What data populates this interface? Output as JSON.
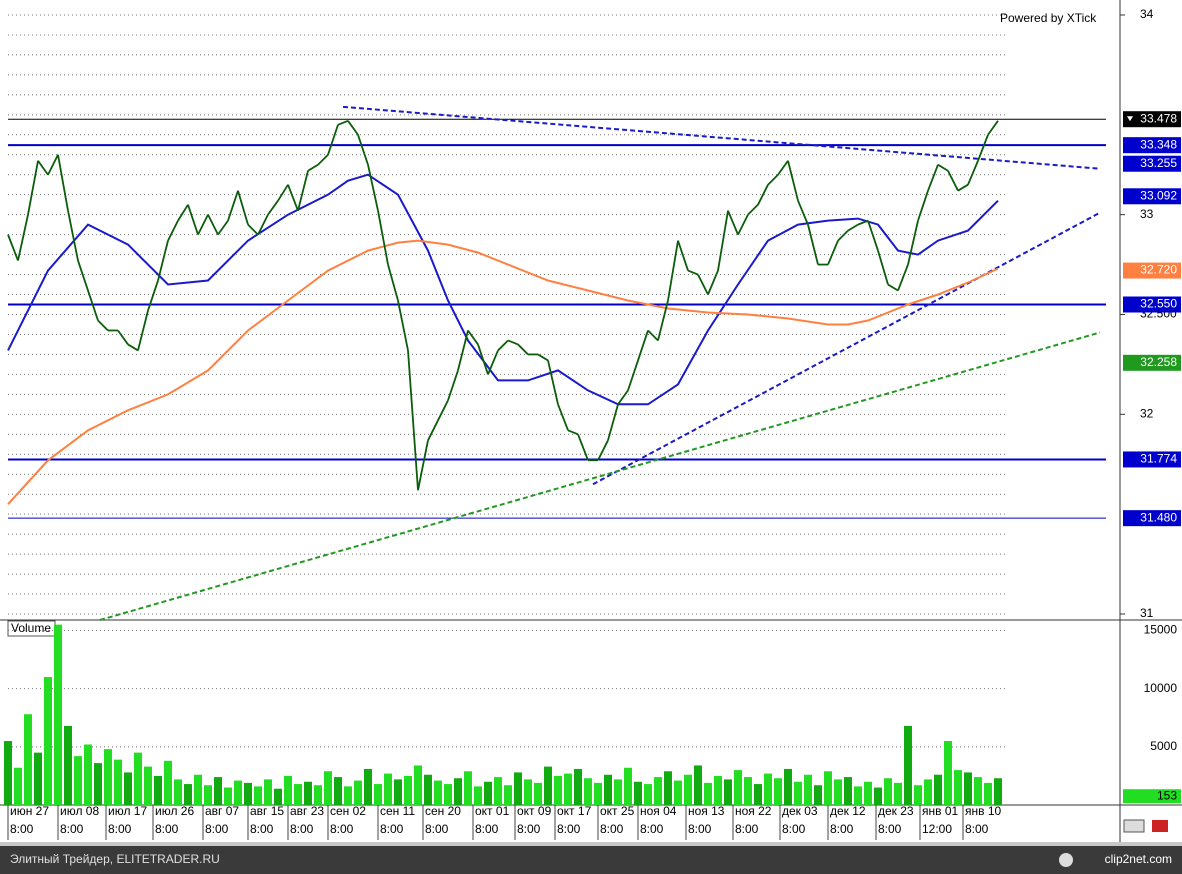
{
  "chart_data": [
    {
      "type": "line",
      "annotation": "Powered by XTick",
      "xlim": [
        -0.8,
        111.2
      ],
      "ylim": [
        30.97,
        34.075
      ],
      "yticks": [
        31,
        32,
        {
          "value": 32.5,
          "label": "32.500"
        },
        33,
        34
      ],
      "ygrid": [
        31.0,
        31.1,
        31.2,
        31.3,
        31.4,
        31.5,
        31.6,
        31.7,
        31.8,
        31.9,
        32.0,
        32.1,
        32.2,
        32.3,
        32.4,
        32.5,
        32.6,
        32.7,
        32.8,
        32.9,
        33.0,
        33.1,
        33.2,
        33.3,
        33.4,
        33.5,
        33.6,
        33.7,
        33.8,
        33.9,
        34.0
      ],
      "grid": true,
      "color": "#0b5d0b",
      "values": [
        32.9,
        32.77,
        33.0,
        33.27,
        33.2,
        33.3,
        33.02,
        32.77,
        32.62,
        32.47,
        32.42,
        32.42,
        32.35,
        32.32,
        32.52,
        32.67,
        32.87,
        32.97,
        33.05,
        32.9,
        33.0,
        32.9,
        32.97,
        33.12,
        32.95,
        32.9,
        33.0,
        33.07,
        33.15,
        33.02,
        33.22,
        33.25,
        33.3,
        33.45,
        33.47,
        33.4,
        33.25,
        33.02,
        32.75,
        32.57,
        32.32,
        31.62,
        31.87,
        31.97,
        32.07,
        32.22,
        32.42,
        32.35,
        32.2,
        32.32,
        32.37,
        32.35,
        32.3,
        32.3,
        32.27,
        32.05,
        31.92,
        31.9,
        31.77,
        31.77,
        31.87,
        32.05,
        32.12,
        32.27,
        32.42,
        32.37,
        32.57,
        32.87,
        32.72,
        32.7,
        32.6,
        32.72,
        33.02,
        32.9,
        33.0,
        33.05,
        33.15,
        33.2,
        33.27,
        33.07,
        32.95,
        32.75,
        32.75,
        32.87,
        32.92,
        32.95,
        32.97,
        32.82,
        32.65,
        32.62,
        32.75,
        32.97,
        33.12,
        33.25,
        33.22,
        33.12,
        33.15,
        33.27,
        33.4,
        33.47
      ],
      "series": [
        {
          "color": "#1a1acc",
          "x": [
            0,
            4,
            8,
            12,
            16,
            20,
            24,
            28,
            32,
            34,
            36,
            39,
            42,
            44,
            46,
            49,
            52,
            55,
            58,
            61,
            64,
            67,
            70,
            73,
            76,
            79,
            82,
            85,
            87,
            89,
            91,
            93,
            96,
            99
          ],
          "values": [
            32.32,
            32.72,
            32.95,
            32.85,
            32.65,
            32.67,
            32.87,
            33.0,
            33.1,
            33.17,
            33.2,
            33.1,
            32.82,
            32.57,
            32.37,
            32.17,
            32.17,
            32.22,
            32.12,
            32.05,
            32.05,
            32.15,
            32.42,
            32.65,
            32.87,
            32.95,
            32.97,
            32.98,
            32.95,
            32.82,
            32.8,
            32.87,
            32.92,
            33.07
          ]
        },
        {
          "color": "#ff8040",
          "x": [
            0,
            4,
            8,
            12,
            16,
            20,
            24,
            28,
            32,
            36,
            39,
            41,
            44,
            47,
            50,
            54,
            58,
            62,
            66,
            70,
            74,
            78,
            82,
            84,
            86,
            88,
            90,
            93,
            96,
            99
          ],
          "values": [
            31.55,
            31.77,
            31.92,
            32.02,
            32.1,
            32.22,
            32.42,
            32.57,
            32.72,
            32.82,
            32.86,
            32.87,
            32.85,
            32.81,
            32.75,
            32.67,
            32.62,
            32.57,
            32.53,
            32.51,
            32.5,
            32.48,
            32.45,
            32.45,
            32.47,
            32.51,
            32.55,
            32.6,
            32.66,
            32.73
          ]
        }
      ],
      "trendlines": [
        {
          "color": "#1a1acc",
          "x": [
            33.5,
            109.2
          ],
          "values": [
            33.54,
            33.23
          ]
        },
        {
          "color": "#1a1acc",
          "x": [
            58.5,
            109.2
          ],
          "values": [
            31.65,
            33.01
          ]
        },
        {
          "color": "#229922",
          "x": [
            9.2,
            109.2
          ],
          "values": [
            30.97,
            32.41
          ]
        }
      ],
      "levels": [
        {
          "value": 33.478,
          "label": "33.478",
          "color": "#000000",
          "line": true
        },
        {
          "value": 33.348,
          "label": "33.348",
          "color": "#0000cc",
          "line": true
        },
        {
          "value": 33.255,
          "label": "33.255",
          "color": "#0000cc",
          "line": false
        },
        {
          "value": 33.092,
          "label": "33.092",
          "color": "#0000cc",
          "line": false
        },
        {
          "value": 32.72,
          "label": "32.720",
          "color": "#ff8040",
          "line": false
        },
        {
          "value": 32.55,
          "label": "32.550",
          "color": "#0000cc",
          "line": true
        },
        {
          "value": 32.258,
          "label": "32.258",
          "color": "#1f9a1f",
          "line": false
        },
        {
          "value": 31.774,
          "label": "31.774",
          "color": "#0000cc",
          "line": true
        },
        {
          "value": 31.48,
          "label": "31.480",
          "color": "#0000cc",
          "line": true
        }
      ]
    },
    {
      "type": "bar",
      "title": "Volume",
      "color": "#22dd22",
      "xlim": [
        -0.8,
        111.2
      ],
      "ylim": [
        0,
        15900
      ],
      "yticks": [
        5000,
        10000,
        15000
      ],
      "last_value": 153,
      "values": [
        5500,
        3200,
        7800,
        4500,
        11000,
        15500,
        6800,
        4200,
        5200,
        3600,
        4800,
        3900,
        2800,
        4500,
        3300,
        2500,
        3800,
        2200,
        1800,
        2600,
        1700,
        2400,
        1500,
        2100,
        1900,
        1600,
        2200,
        1400,
        2500,
        1800,
        2000,
        1700,
        2900,
        2400,
        1600,
        2100,
        3100,
        1800,
        2700,
        2200,
        2500,
        3400,
        2600,
        2100,
        1800,
        2300,
        2900,
        1600,
        2000,
        2400,
        1700,
        2800,
        2200,
        1900,
        3300,
        2500,
        2700,
        3100,
        2300,
        1900,
        2600,
        2200,
        3200,
        2000,
        1800,
        2400,
        2900,
        2100,
        2600,
        3400,
        1900,
        2500,
        2200,
        3000,
        2400,
        1800,
        2700,
        2300,
        3100,
        2000,
        2600,
        1700,
        2900,
        2200,
        2400,
        1600,
        2000,
        1500,
        2300,
        1900,
        6800,
        1700,
        2200,
        2600,
        5500,
        3000,
        2800,
        2400,
        1900,
        2300
      ],
      "xticks": [
        {
          "value": 0.2,
          "label": "июн 27"
        },
        {
          "value": 5.2,
          "label": "июл 08"
        },
        {
          "value": 10,
          "label": "июл 17"
        },
        {
          "value": 14.7,
          "label": "июл 26"
        },
        {
          "value": 19.7,
          "label": "авг 07"
        },
        {
          "value": 24.2,
          "label": "авг 15"
        },
        {
          "value": 28.2,
          "label": "авг 23"
        },
        {
          "value": 32.2,
          "label": "сен 02"
        },
        {
          "value": 37.2,
          "label": "сен 11"
        },
        {
          "value": 41.7,
          "label": "сен 20"
        },
        {
          "value": 46.7,
          "label": "окт 01"
        },
        {
          "value": 50.9,
          "label": "окт 09"
        },
        {
          "value": 54.9,
          "label": "окт 17"
        },
        {
          "value": 59.2,
          "label": "окт 25"
        },
        {
          "value": 63.2,
          "label": "ноя 04"
        },
        {
          "value": 68,
          "label": "ноя 13"
        },
        {
          "value": 72.7,
          "label": "ноя 22"
        },
        {
          "value": 77.4,
          "label": "дек 03"
        },
        {
          "value": 82.2,
          "label": "дек 12"
        },
        {
          "value": 87,
          "label": "дек 23"
        },
        {
          "value": 91.4,
          "label": "янв 01"
        },
        {
          "value": 95.7,
          "label": "янв 10"
        }
      ],
      "time_labels": [
        "8:00",
        "8:00",
        "8:00",
        "8:00",
        "8:00",
        "8:00",
        "8:00",
        "8:00",
        "8:00",
        "8:00",
        "8:00",
        "8:00",
        "8:00",
        "8:00",
        "8:00",
        "8:00",
        "8:00",
        "8:00",
        "8:00",
        "8:00",
        "12:00",
        "8:00"
      ]
    }
  ],
  "footer": {
    "left": "Элитный Трейдер, ELITETRADER.RU",
    "right": "clip2net.com"
  }
}
